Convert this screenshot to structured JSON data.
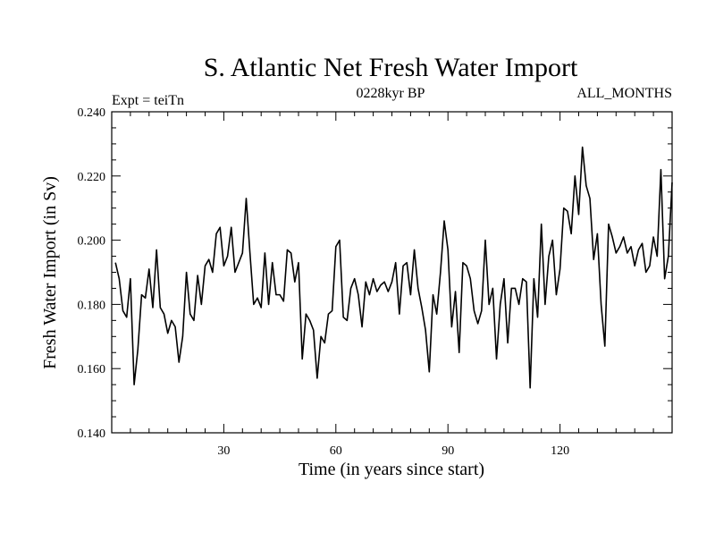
{
  "chart_data": {
    "type": "line",
    "title": "S. Atlantic Net Fresh Water Import",
    "left_label": "Expt = teiTn",
    "center_label": "0228kyr BP",
    "right_label": "ALL_MONTHS",
    "xlabel": "Time (in years since start)",
    "ylabel": "Fresh Water Import (in Sv)",
    "xlim": [
      0,
      150
    ],
    "ylim": [
      0.14,
      0.24
    ],
    "x_ticks": [
      30,
      60,
      90,
      120
    ],
    "y_ticks": [
      "0.140",
      "0.160",
      "0.180",
      "0.200",
      "0.220",
      "0.240"
    ],
    "series": [
      {
        "name": "S. Atlantic Net Fresh Water Import",
        "color": "#000000",
        "x_start": 1,
        "x_step": 1,
        "values": [
          0.193,
          0.188,
          0.178,
          0.176,
          0.188,
          0.155,
          0.166,
          0.183,
          0.182,
          0.191,
          0.179,
          0.197,
          0.179,
          0.177,
          0.171,
          0.175,
          0.173,
          0.162,
          0.17,
          0.19,
          0.177,
          0.175,
          0.189,
          0.18,
          0.192,
          0.194,
          0.19,
          0.202,
          0.204,
          0.192,
          0.195,
          0.204,
          0.19,
          0.193,
          0.196,
          0.213,
          0.196,
          0.18,
          0.182,
          0.179,
          0.196,
          0.18,
          0.193,
          0.183,
          0.183,
          0.181,
          0.197,
          0.196,
          0.187,
          0.193,
          0.163,
          0.177,
          0.175,
          0.172,
          0.157,
          0.17,
          0.168,
          0.177,
          0.178,
          0.198,
          0.2,
          0.176,
          0.175,
          0.185,
          0.188,
          0.183,
          0.173,
          0.187,
          0.183,
          0.188,
          0.184,
          0.186,
          0.187,
          0.184,
          0.187,
          0.193,
          0.177,
          0.192,
          0.193,
          0.183,
          0.197,
          0.185,
          0.179,
          0.172,
          0.159,
          0.183,
          0.177,
          0.19,
          0.206,
          0.197,
          0.173,
          0.184,
          0.165,
          0.193,
          0.192,
          0.188,
          0.178,
          0.174,
          0.178,
          0.2,
          0.18,
          0.185,
          0.163,
          0.18,
          0.188,
          0.168,
          0.185,
          0.185,
          0.18,
          0.188,
          0.187,
          0.154,
          0.188,
          0.176,
          0.205,
          0.18,
          0.195,
          0.2,
          0.183,
          0.191,
          0.21,
          0.209,
          0.202,
          0.22,
          0.208,
          0.229,
          0.217,
          0.213,
          0.194,
          0.202,
          0.18,
          0.167,
          0.205,
          0.201,
          0.196,
          0.198,
          0.201,
          0.196,
          0.198,
          0.192,
          0.197,
          0.199,
          0.19,
          0.192,
          0.201,
          0.195,
          0.222,
          0.188,
          0.195,
          0.218
        ]
      }
    ]
  }
}
